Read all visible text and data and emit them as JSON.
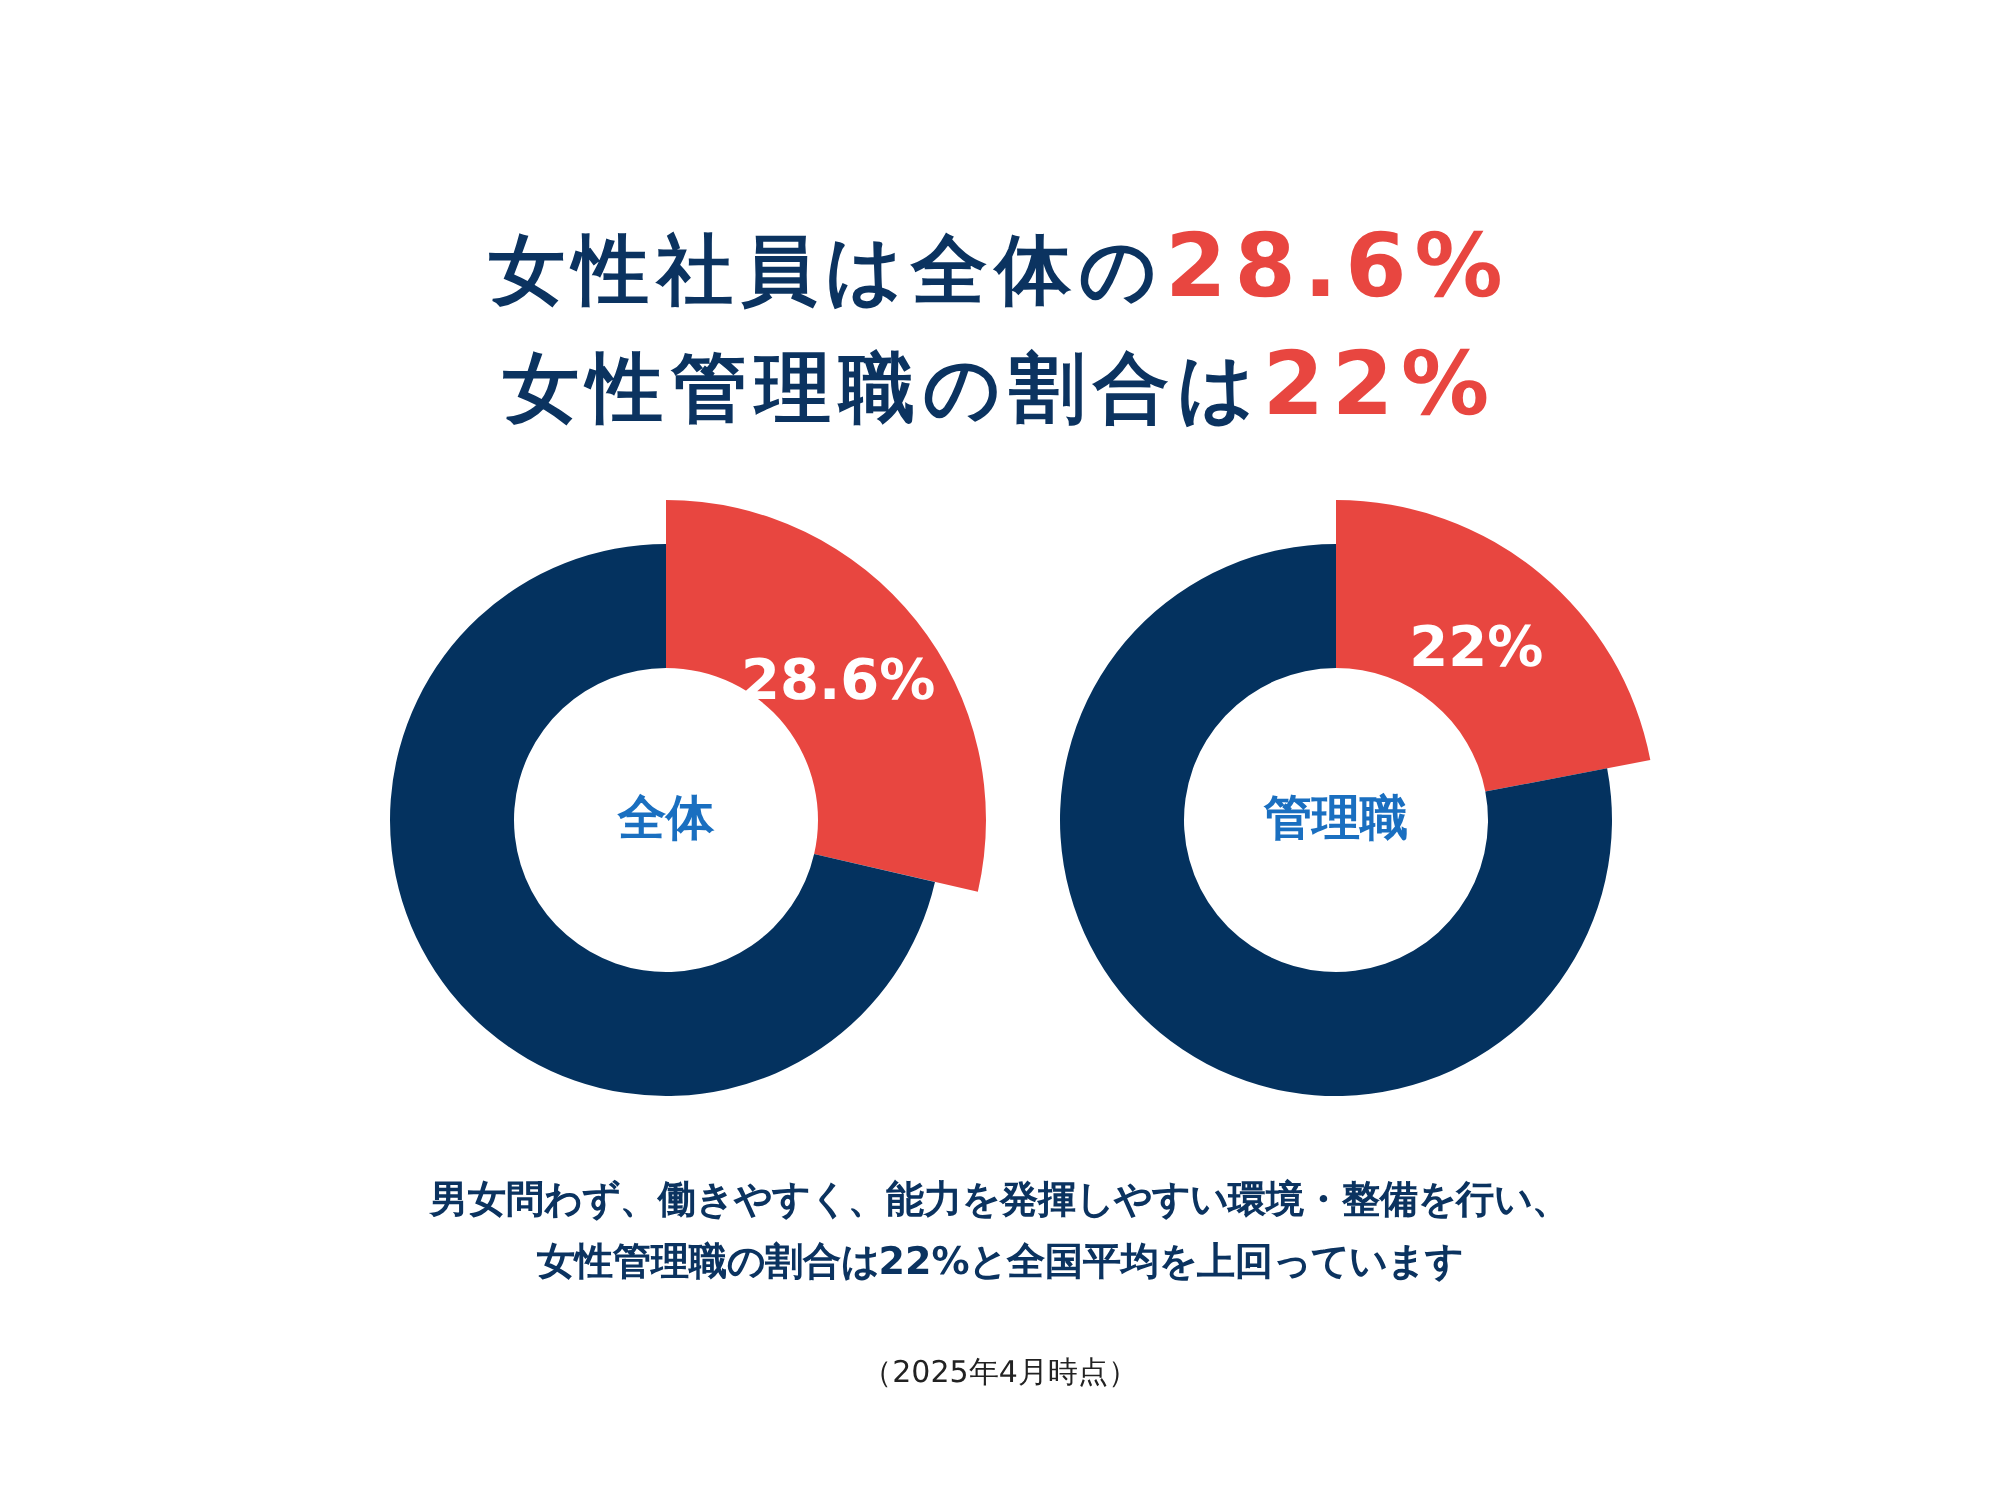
{
  "chart_data": [
    {
      "type": "other",
      "title": "女性社員は全体の28.6%\n女性管理職の割合は22%"
    },
    {
      "type": "donut",
      "title": "全体",
      "categories": [
        null,
        null
      ],
      "values": [
        28.6,
        71.4
      ],
      "colors": [
        "#e84640",
        "#04325f"
      ],
      "value_labels": [
        "28.6%",
        null
      ]
    },
    {
      "type": "donut",
      "title": "管理職",
      "categories": [
        null,
        null
      ],
      "values": [
        22,
        78
      ],
      "colors": [
        "#e84640",
        "#04325f"
      ],
      "value_labels": [
        "22%",
        null
      ]
    },
    {
      "type": "other",
      "annotations": [
        "男女問わず、働きやすく、能力を発揮しやすい環境・整備を行い、",
        "女性管理職の割合は22%と全国平均を上回っています",
        "（2025年4月時点）"
      ]
    }
  ]
}
